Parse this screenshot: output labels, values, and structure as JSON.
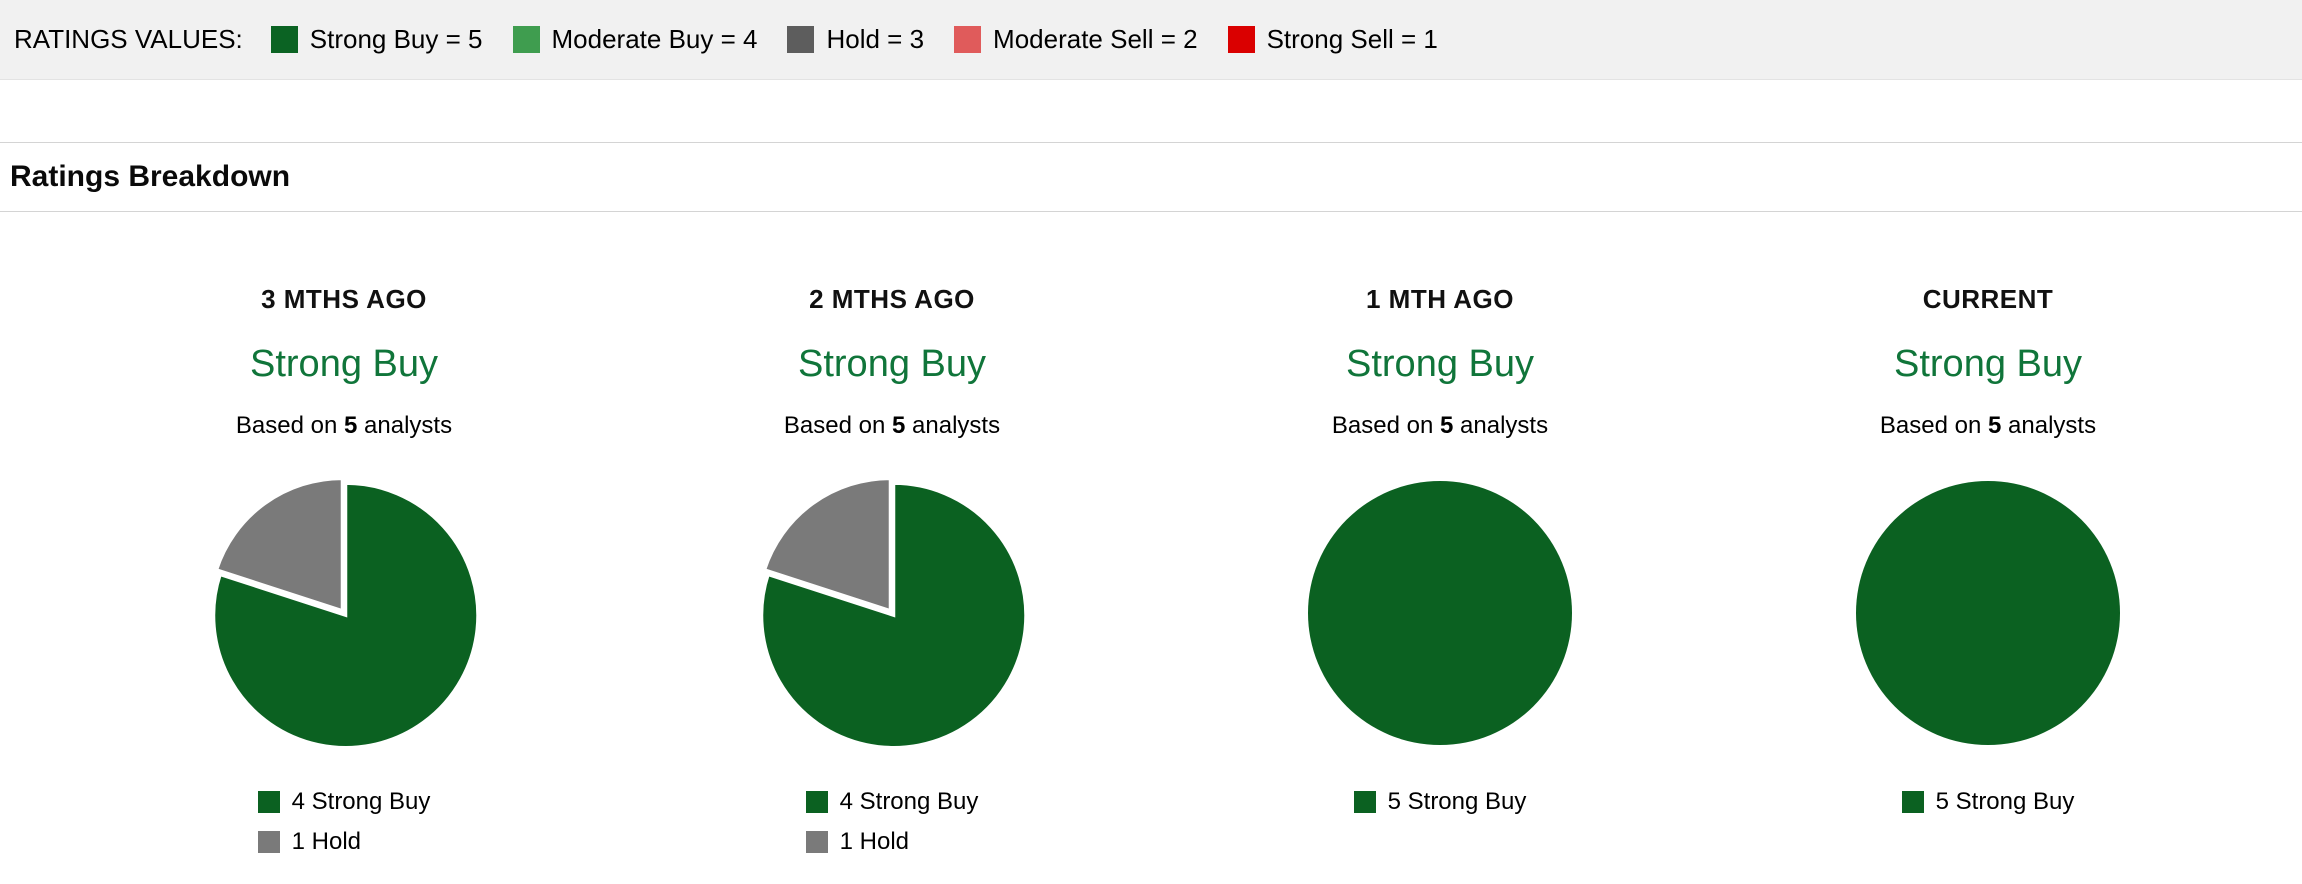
{
  "legend_bar": {
    "label": "RATINGS VALUES:",
    "items": [
      {
        "label": "Strong Buy = 5",
        "color": "#0b6323"
      },
      {
        "label": "Moderate Buy = 4",
        "color": "#3f9d4f"
      },
      {
        "label": "Hold = 3",
        "color": "#5d5d5d"
      },
      {
        "label": "Moderate Sell = 2",
        "color": "#e05b5b"
      },
      {
        "label": "Strong Sell = 1",
        "color": "#da0000"
      }
    ]
  },
  "section": {
    "title": "Ratings Breakdown"
  },
  "chart_data": [
    {
      "type": "pie",
      "title": "3 MTHS AGO",
      "rating": "Strong Buy",
      "rating_color": "#10753a",
      "based_on_prefix": "Based on ",
      "analyst_count": "5",
      "based_on_suffix": " analysts",
      "legend_position": "bottom",
      "slices": [
        {
          "label": "4 Strong Buy",
          "value": 4,
          "color": "#0b6121"
        },
        {
          "label": "1 Hold",
          "value": 1,
          "color": "#7a7a7a"
        }
      ]
    },
    {
      "type": "pie",
      "title": "2 MTHS AGO",
      "rating": "Strong Buy",
      "rating_color": "#10753a",
      "based_on_prefix": "Based on ",
      "analyst_count": "5",
      "based_on_suffix": " analysts",
      "legend_position": "bottom",
      "slices": [
        {
          "label": "4 Strong Buy",
          "value": 4,
          "color": "#0b6121"
        },
        {
          "label": "1 Hold",
          "value": 1,
          "color": "#7a7a7a"
        }
      ]
    },
    {
      "type": "pie",
      "title": "1 MTH AGO",
      "rating": "Strong Buy",
      "rating_color": "#10753a",
      "based_on_prefix": "Based on ",
      "analyst_count": "5",
      "based_on_suffix": " analysts",
      "legend_position": "bottom",
      "slices": [
        {
          "label": "5 Strong Buy",
          "value": 5,
          "color": "#0b6121"
        }
      ]
    },
    {
      "type": "pie",
      "title": "CURRENT",
      "rating": "Strong Buy",
      "rating_color": "#10753a",
      "based_on_prefix": "Based on ",
      "analyst_count": "5",
      "based_on_suffix": " analysts",
      "legend_position": "bottom",
      "slices": [
        {
          "label": "5 Strong Buy",
          "value": 5,
          "color": "#0b6121"
        }
      ]
    }
  ]
}
